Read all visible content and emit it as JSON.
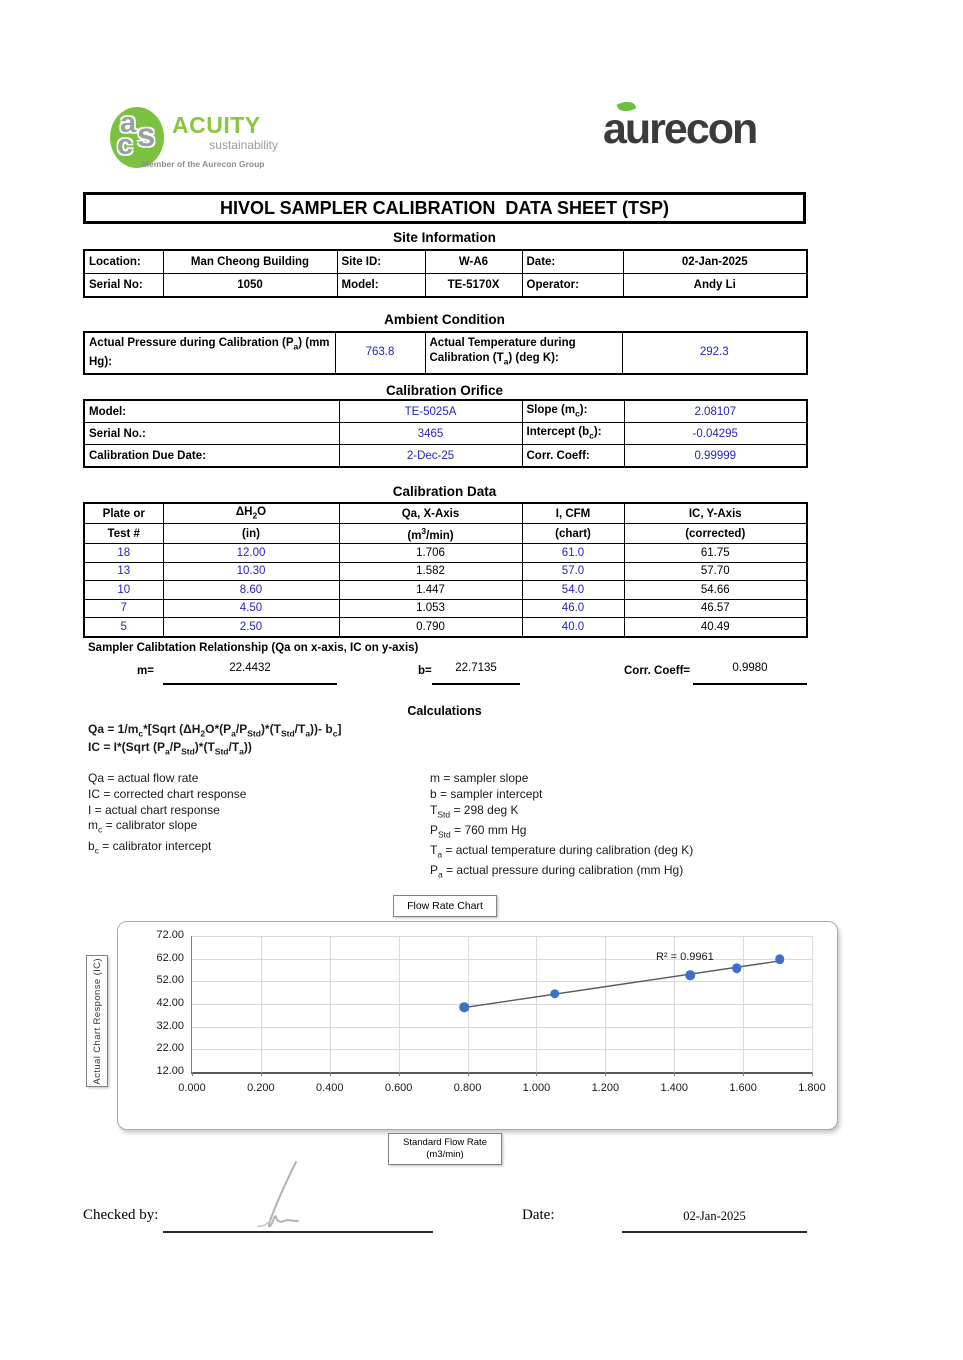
{
  "colors": {
    "value_blue": "#2222CC",
    "acuity_green": "#8CC63E",
    "logo_ellipse_green": "#7CC142",
    "aurecon_dark": "#3B3B3A",
    "point_blue": "#3E6FC9",
    "gridline_gray": "#d9d9d9"
  },
  "header": {
    "acuity": {
      "monogram": [
        "a",
        "c",
        "s"
      ],
      "name": "ACUITY",
      "tagline": "sustainability",
      "member_line": "Member of the Aurecon Group"
    },
    "aurecon_name": "aurecon"
  },
  "title": "HIVOL SAMPLER CALIBRATION  DATA SHEET (TSP)",
  "site_information": {
    "heading": "Site Information",
    "row1": {
      "c1l": "Location:",
      "c1v": "Man Cheong Building",
      "c2l": "Site ID:",
      "c2v": "W-A6",
      "c3l": "Date:",
      "c3v": "02-Jan-2025"
    },
    "row2": {
      "c1l": "Serial No:",
      "c1v": "1050",
      "c2l": "Model:",
      "c2v": "TE-5170X",
      "c3l": "Operator:",
      "c3v": "Andy Li"
    }
  },
  "ambient_condition": {
    "heading": "Ambient Condition",
    "pressure_label": "Actual Pressure during Calibration (P<sub>a</sub>) (mm Hg):",
    "pressure_value": "763.8",
    "temperature_label": "Actual Temperature during Calibration (T<sub>a</sub>) (deg K):",
    "temperature_value": "292.3"
  },
  "calibration_orifice": {
    "heading": "Calibration Orifice",
    "rows": [
      {
        "label1": "Model:",
        "value1": "TE-5025A",
        "label2": "Slope (m<sub>c</sub>):",
        "value2": "2.08107"
      },
      {
        "label1": "Serial No.:",
        "value1": "3465",
        "label2": "Intercept (b<sub>c</sub>):",
        "value2": "-0.04295"
      },
      {
        "label1": "Calibration Due Date:",
        "value1": "2-Dec-25",
        "label2": "Corr. Coeff:",
        "value2": "0.99999"
      }
    ]
  },
  "calibration_data": {
    "heading": "Calibration Data",
    "col_headers_line1": [
      "Plate or",
      "ΔH<sub>2</sub>O",
      "Qa, X-Axis",
      "I, CFM",
      "IC, Y-Axis"
    ],
    "col_headers_line2": [
      "Test #",
      "(in)",
      "(m<sup>3</sup>/min)",
      "(chart)",
      "(corrected)"
    ],
    "rows": [
      {
        "test": "18",
        "dh2o": "12.00",
        "qa": "1.706",
        "i": "61.0",
        "ic": "61.75"
      },
      {
        "test": "13",
        "dh2o": "10.30",
        "qa": "1.582",
        "i": "57.0",
        "ic": "57.70"
      },
      {
        "test": "10",
        "dh2o": "8.60",
        "qa": "1.447",
        "i": "54.0",
        "ic": "54.66"
      },
      {
        "test": "7",
        "dh2o": "4.50",
        "qa": "1.053",
        "i": "46.0",
        "ic": "46.57"
      },
      {
        "test": "5",
        "dh2o": "2.50",
        "qa": "0.790",
        "i": "40.0",
        "ic": "40.49"
      }
    ]
  },
  "relationship": {
    "heading": "Sampler Calibtation Relationship (Qa on x-axis, IC on y-axis)",
    "m_label": "m=",
    "m_value": "22.4432",
    "b_label": "b=",
    "b_value": "22.7135",
    "corr_label": "Corr. Coeff=",
    "corr_value": "0.9980"
  },
  "calculations": {
    "heading": "Calculations",
    "formula1": "Qa = 1/m<sub>c</sub>*[Sqrt (ΔH<sub>2</sub>O*(P<sub>a</sub>/P<sub>Std</sub>)*(T<sub>Std</sub>/T<sub>a</sub>))- b<sub>c</sub>]",
    "formula2": "IC = I*(Sqrt (P<sub>a</sub>/P<sub>Std</sub>)*(T<sub>Std</sub>/T<sub>a</sub>))",
    "left_definitions": [
      "Qa = actual flow rate",
      "IC = corrected chart response",
      "I = actual chart response",
      "m<sub>c</sub>  = calibrator slope",
      "b<sub>c</sub>  = calibrator intercept"
    ],
    "right_definitions": [
      "m = sampler slope",
      "b  = sampler intercept",
      "T<sub>Std</sub> = 298 deg K",
      "P<sub>Std</sub> = 760 mm Hg",
      "T<sub>a</sub> = actual temperature during calibration (deg K)",
      "P<sub>a</sub> = actual pressure during calibration (mm Hg)"
    ]
  },
  "chart_data": {
    "type": "scatter",
    "title": "Flow Rate Chart",
    "xlabel_line1": "Standard Flow Rate",
    "xlabel_line2": "(m3/min)",
    "ylabel": "Actual Chart Response (IC)",
    "x": [
      0.79,
      1.053,
      1.447,
      1.582,
      1.706
    ],
    "y": [
      40.49,
      46.57,
      54.66,
      57.7,
      61.75
    ],
    "xlim": [
      0.0,
      1.8
    ],
    "ylim": [
      12.0,
      72.0
    ],
    "xticks": [
      "0.000",
      "0.200",
      "0.400",
      "0.600",
      "0.800",
      "1.000",
      "1.200",
      "1.400",
      "1.600",
      "1.800"
    ],
    "yticks": [
      "12.00",
      "22.00",
      "32.00",
      "42.00",
      "52.00",
      "62.00",
      "72.00"
    ],
    "annotation": "R² = 0.9961",
    "trendline": {
      "slope": 22.4432,
      "intercept": 22.7135,
      "x_start": 0.79,
      "x_end": 1.706
    },
    "grid": true,
    "legend": "none",
    "point_color": "#3E6FC9"
  },
  "footer": {
    "checked_by_label": "Checked by:",
    "date_label": "Date:",
    "date_value": "02-Jan-2025"
  }
}
